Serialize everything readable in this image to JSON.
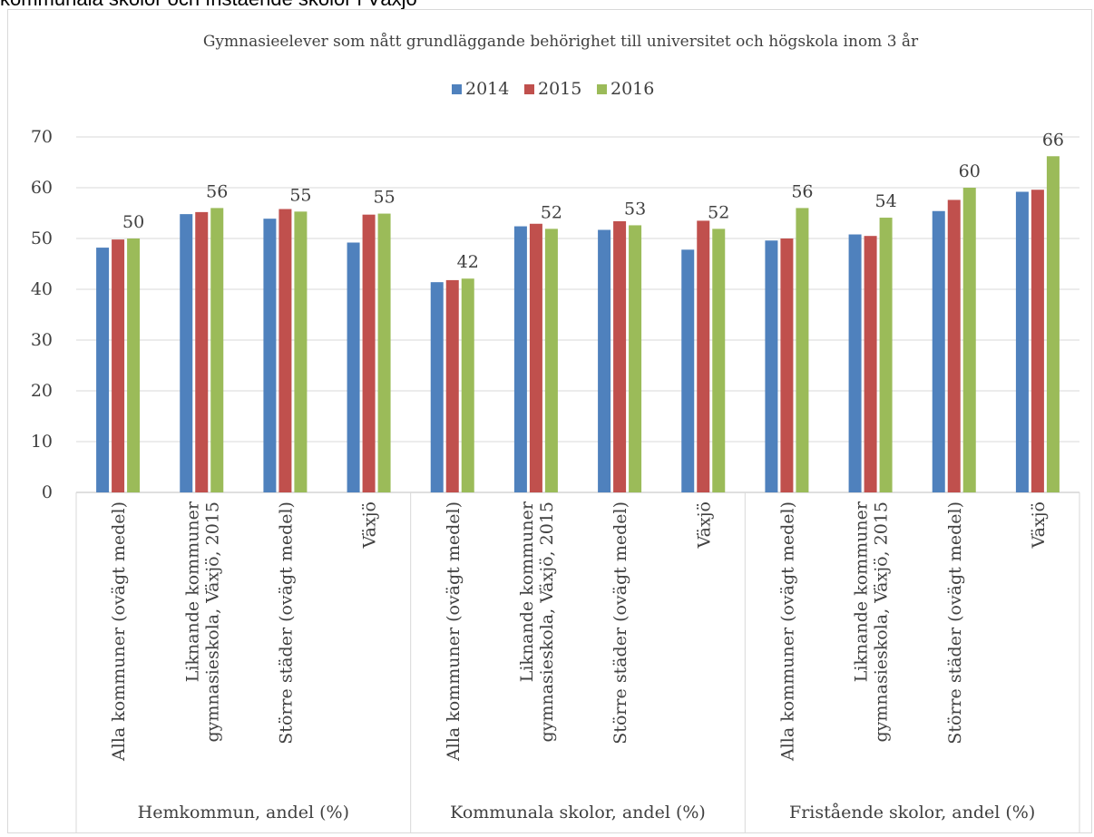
{
  "page_heading": "kommunala skolor och fristående skolor i Växjö",
  "chart_data": {
    "type": "bar",
    "title": "Gymnasieelever som nått grundläggande behörighet till universitet och högskola inom 3 år",
    "legend_position": "top",
    "grid": true,
    "ylim": [
      0,
      70
    ],
    "yticks": [
      "0",
      "10",
      "20",
      "30",
      "40",
      "50",
      "60",
      "70"
    ],
    "groups": [
      {
        "label": "Hemkommun, andel (%)",
        "categories": [
          "Alla kommuner (ovägt medel)",
          "Liknande kommuner gymnasieskola, Växjö, 2015",
          "Större städer (ovägt medel)",
          "Växjö"
        ],
        "category_lines": [
          [
            "Alla kommuner (ovägt medel)"
          ],
          [
            "Liknande kommuner",
            "gymnasieskola, Växjö, 2015"
          ],
          [
            "Större städer (ovägt medel)"
          ],
          [
            "Växjö"
          ]
        ]
      },
      {
        "label": "Kommunala skolor, andel (%)",
        "categories": [
          "Alla kommuner (ovägt medel)",
          "Liknande kommuner gymnasieskola, Växjö, 2015",
          "Större städer (ovägt medel)",
          "Växjö"
        ],
        "category_lines": [
          [
            "Alla kommuner (ovägt medel)"
          ],
          [
            "Liknande kommuner",
            "gymnasieskola, Växjö, 2015"
          ],
          [
            "Större städer (ovägt medel)"
          ],
          [
            "Växjö"
          ]
        ]
      },
      {
        "label": "Fristående skolor, andel (%)",
        "categories": [
          "Alla kommuner (ovägt medel)",
          "Liknande kommuner gymnasieskola, Växjö, 2015",
          "Större städer (ovägt medel)",
          "Växjö"
        ],
        "category_lines": [
          [
            "Alla kommuner (ovägt medel)"
          ],
          [
            "Liknande kommuner",
            "gymnasieskola, Växjö, 2015"
          ],
          [
            "Större städer (ovägt medel)"
          ],
          [
            "Växjö"
          ]
        ]
      }
    ],
    "series": [
      {
        "name": "2014",
        "color": "#4f81bd",
        "values": [
          48.2,
          54.8,
          53.9,
          49.2,
          41.4,
          52.4,
          51.7,
          47.8,
          49.6,
          50.8,
          55.4,
          59.2
        ]
      },
      {
        "name": "2015",
        "color": "#c0504d",
        "values": [
          49.8,
          55.2,
          55.8,
          54.7,
          41.8,
          52.9,
          53.4,
          53.5,
          50.0,
          50.5,
          57.6,
          59.6
        ]
      },
      {
        "name": "2016",
        "color": "#9bbb59",
        "values": [
          50.0,
          56.0,
          55.3,
          54.9,
          42.1,
          51.9,
          52.6,
          51.9,
          56.0,
          54.1,
          60.0,
          66.2
        ]
      }
    ],
    "data_labels": [
      {
        "series": 2,
        "index": 0,
        "text": "50"
      },
      {
        "series": 2,
        "index": 1,
        "text": "56"
      },
      {
        "series": 2,
        "index": 2,
        "text": "55"
      },
      {
        "series": 2,
        "index": 3,
        "text": "55"
      },
      {
        "series": 2,
        "index": 4,
        "text": "42"
      },
      {
        "series": 2,
        "index": 5,
        "text": "52"
      },
      {
        "series": 2,
        "index": 6,
        "text": "53"
      },
      {
        "series": 2,
        "index": 7,
        "text": "52"
      },
      {
        "series": 2,
        "index": 8,
        "text": "56"
      },
      {
        "series": 2,
        "index": 9,
        "text": "54"
      },
      {
        "series": 2,
        "index": 10,
        "text": "60"
      },
      {
        "series": 2,
        "index": 11,
        "text": "66"
      }
    ]
  }
}
